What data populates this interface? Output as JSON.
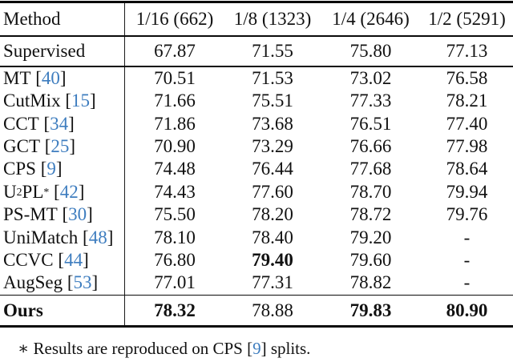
{
  "colors": {
    "citation_blue": "#3e7dbf",
    "text": "#111111",
    "rule": "#0a0a0a"
  },
  "citation_brackets": {
    "open": "[",
    "close": "]"
  },
  "table": {
    "header": [
      "Method",
      "1/16 (662)",
      "1/8 (1323)",
      "1/4 (2646)",
      "1/2 (5291)"
    ],
    "supervised": {
      "parts": [
        {
          "t": "Supervised"
        }
      ],
      "cite": null,
      "values": [
        "67.87",
        "71.55",
        "75.80",
        "77.13"
      ],
      "bold": [
        false,
        false,
        false,
        false
      ],
      "label_bold": false
    },
    "methods": [
      {
        "parts": [
          {
            "t": "MT"
          }
        ],
        "cite": "40",
        "values": [
          "70.51",
          "71.53",
          "73.02",
          "76.58"
        ],
        "bold": [
          false,
          false,
          false,
          false
        ],
        "label_bold": false
      },
      {
        "parts": [
          {
            "t": "CutMix"
          }
        ],
        "cite": "15",
        "values": [
          "71.66",
          "75.51",
          "77.33",
          "78.21"
        ],
        "bold": [
          false,
          false,
          false,
          false
        ],
        "label_bold": false
      },
      {
        "parts": [
          {
            "t": "CCT"
          }
        ],
        "cite": "34",
        "values": [
          "71.86",
          "73.68",
          "76.51",
          "77.40"
        ],
        "bold": [
          false,
          false,
          false,
          false
        ],
        "label_bold": false
      },
      {
        "parts": [
          {
            "t": "GCT"
          }
        ],
        "cite": "25",
        "values": [
          "70.90",
          "73.29",
          "76.66",
          "77.98"
        ],
        "bold": [
          false,
          false,
          false,
          false
        ],
        "label_bold": false
      },
      {
        "parts": [
          {
            "t": "CPS"
          }
        ],
        "cite": "9",
        "values": [
          "74.48",
          "76.44",
          "77.68",
          "78.64"
        ],
        "bold": [
          false,
          false,
          false,
          false
        ],
        "label_bold": false
      },
      {
        "parts": [
          {
            "t": "U"
          },
          {
            "t": "2",
            "sup": true
          },
          {
            "t": "PL"
          },
          {
            "t": "*",
            "sup": true
          }
        ],
        "cite": "42",
        "values": [
          "74.43",
          "77.60",
          "78.70",
          "79.94"
        ],
        "bold": [
          false,
          false,
          false,
          false
        ],
        "label_bold": false
      },
      {
        "parts": [
          {
            "t": "PS-MT"
          }
        ],
        "cite": "30",
        "values": [
          "75.50",
          "78.20",
          "78.72",
          "79.76"
        ],
        "bold": [
          false,
          false,
          false,
          false
        ],
        "label_bold": false
      },
      {
        "parts": [
          {
            "t": "UniMatch"
          }
        ],
        "cite": "48",
        "values": [
          "78.10",
          "78.40",
          "79.20",
          "-"
        ],
        "bold": [
          false,
          false,
          false,
          false
        ],
        "label_bold": false
      },
      {
        "parts": [
          {
            "t": "CCVC"
          }
        ],
        "cite": "44",
        "values": [
          "76.80",
          "79.40",
          "79.60",
          "-"
        ],
        "bold": [
          false,
          true,
          false,
          false
        ],
        "label_bold": false
      },
      {
        "parts": [
          {
            "t": "AugSeg"
          }
        ],
        "cite": "53",
        "values": [
          "77.01",
          "77.31",
          "78.82",
          "-"
        ],
        "bold": [
          false,
          false,
          false,
          false
        ],
        "label_bold": false
      }
    ],
    "ours": {
      "parts": [
        {
          "t": "Ours"
        }
      ],
      "cite": null,
      "values": [
        "78.32",
        "78.88",
        "79.83",
        "80.90"
      ],
      "bold": [
        true,
        false,
        true,
        true
      ],
      "label_bold": true
    },
    "footnote": {
      "marker": "∗",
      "prefix": " Results are reproduced on CPS ",
      "cite": "9",
      "suffix": " splits."
    }
  }
}
